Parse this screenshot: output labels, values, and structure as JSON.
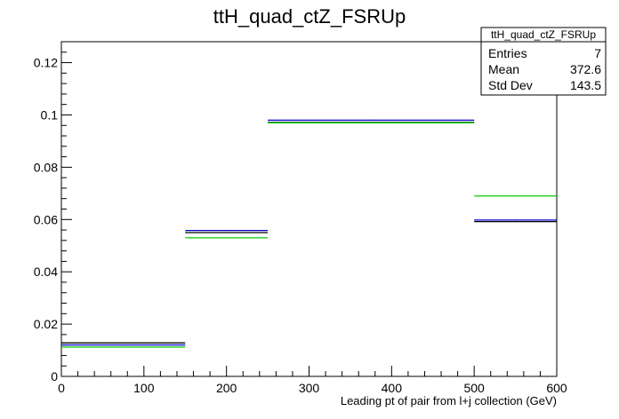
{
  "chart_data": {
    "type": "histogram",
    "title": "ttH_quad_ctZ_FSRUp",
    "xlabel": "Leading pt of pair from l+j collection (GeV)",
    "ylabel": "",
    "xlim": [
      0,
      600
    ],
    "ylim": [
      0,
      0.128
    ],
    "x_ticks": [
      0,
      100,
      200,
      300,
      400,
      500,
      600
    ],
    "y_ticks": [
      0,
      0.02,
      0.04,
      0.06,
      0.08,
      0.1,
      0.12
    ],
    "x_tick_labels": [
      "0",
      "100",
      "200",
      "300",
      "400",
      "500",
      "600"
    ],
    "y_tick_labels": [
      "0",
      "0.02",
      "0.04",
      "0.06",
      "0.08",
      "0.1",
      "0.12"
    ],
    "grid": false,
    "bin_edges": [
      0,
      150,
      250,
      500,
      600
    ],
    "series": [
      {
        "color": "#000000",
        "values": [
          0.0128,
          0.055,
          0.0972,
          0.0592
        ]
      },
      {
        "color": "#0000cc",
        "values": [
          0.012,
          0.0558,
          0.098,
          0.0598
        ]
      },
      {
        "color": "#00cc00",
        "values": [
          0.0112,
          0.053,
          0.097,
          0.069
        ]
      }
    ],
    "stats_box": {
      "name": "ttH_quad_ctZ_FSRUp",
      "rows": [
        {
          "label": "Entries",
          "value": "7"
        },
        {
          "label": "Mean",
          "value": "372.6"
        },
        {
          "label": "Std Dev",
          "value": "143.5"
        }
      ]
    }
  }
}
